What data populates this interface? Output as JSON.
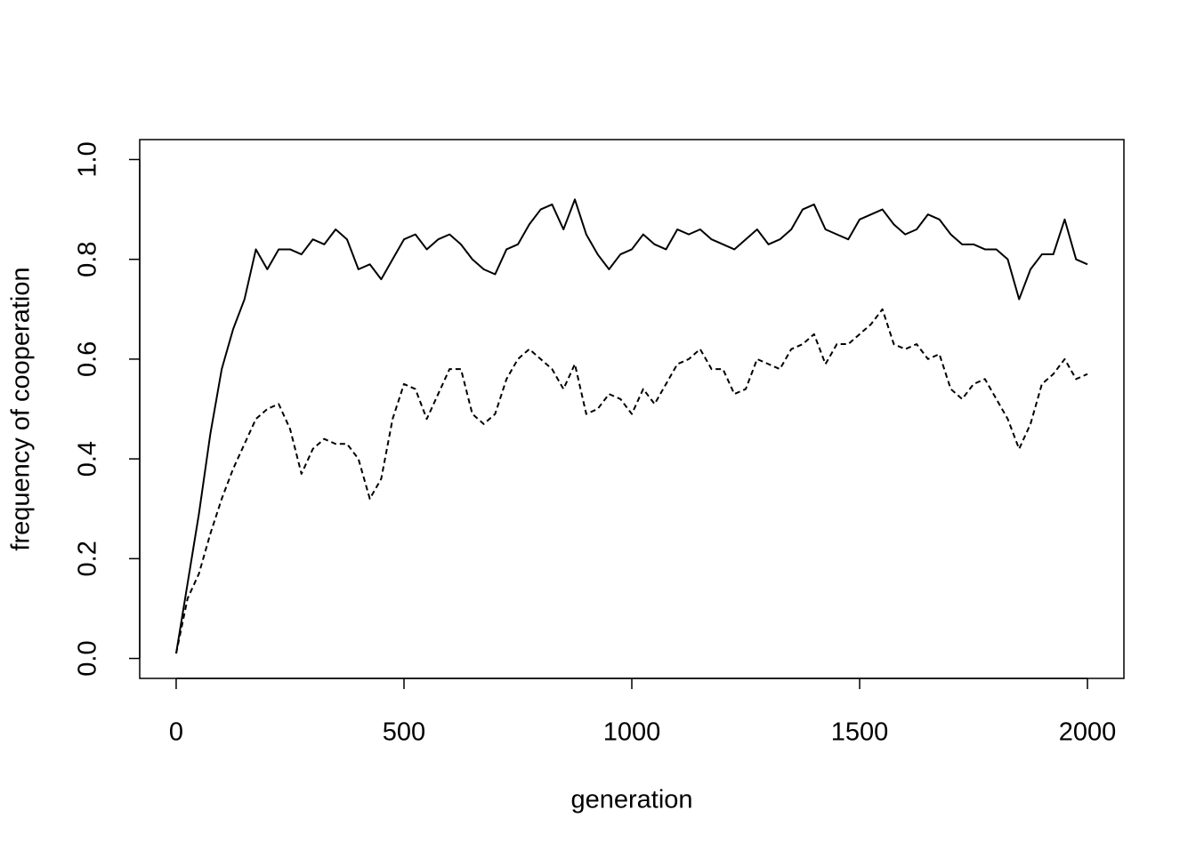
{
  "chart_data": {
    "type": "line",
    "x_label": "generation",
    "y_label": "frequency of cooperation",
    "x": [
      0,
      25,
      50,
      75,
      100,
      125,
      150,
      175,
      200,
      225,
      250,
      275,
      300,
      325,
      350,
      375,
      400,
      425,
      450,
      475,
      500,
      525,
      550,
      575,
      600,
      625,
      650,
      675,
      700,
      725,
      750,
      775,
      800,
      825,
      850,
      875,
      900,
      925,
      950,
      975,
      1000,
      1025,
      1050,
      1075,
      1100,
      1125,
      1150,
      1175,
      1200,
      1225,
      1250,
      1275,
      1300,
      1325,
      1350,
      1375,
      1400,
      1425,
      1450,
      1475,
      1500,
      1525,
      1550,
      1575,
      1600,
      1625,
      1650,
      1675,
      1700,
      1725,
      1750,
      1775,
      1800,
      1825,
      1850,
      1875,
      1900,
      1925,
      1950,
      1975,
      2000
    ],
    "series": [
      {
        "color": "#000000",
        "dash": "solid",
        "values": [
          0.01,
          0.15,
          0.29,
          0.45,
          0.58,
          0.66,
          0.72,
          0.82,
          0.78,
          0.82,
          0.82,
          0.81,
          0.84,
          0.83,
          0.86,
          0.84,
          0.78,
          0.79,
          0.76,
          0.8,
          0.84,
          0.85,
          0.82,
          0.84,
          0.85,
          0.83,
          0.8,
          0.78,
          0.77,
          0.82,
          0.83,
          0.87,
          0.9,
          0.91,
          0.86,
          0.92,
          0.85,
          0.81,
          0.78,
          0.81,
          0.82,
          0.85,
          0.83,
          0.82,
          0.86,
          0.85,
          0.86,
          0.84,
          0.83,
          0.82,
          0.84,
          0.86,
          0.83,
          0.84,
          0.86,
          0.9,
          0.91,
          0.86,
          0.85,
          0.84,
          0.88,
          0.89,
          0.9,
          0.87,
          0.85,
          0.86,
          0.89,
          0.88,
          0.85,
          0.83,
          0.83,
          0.82,
          0.82,
          0.8,
          0.72,
          0.78,
          0.81,
          0.81,
          0.88,
          0.8,
          0.79
        ]
      },
      {
        "color": "#000000",
        "dash": "dashed",
        "values": [
          0.01,
          0.12,
          0.17,
          0.25,
          0.32,
          0.38,
          0.43,
          0.48,
          0.5,
          0.51,
          0.46,
          0.37,
          0.42,
          0.44,
          0.43,
          0.43,
          0.4,
          0.32,
          0.36,
          0.48,
          0.55,
          0.54,
          0.48,
          0.53,
          0.58,
          0.58,
          0.49,
          0.47,
          0.49,
          0.56,
          0.6,
          0.62,
          0.6,
          0.58,
          0.54,
          0.59,
          0.49,
          0.5,
          0.53,
          0.52,
          0.49,
          0.54,
          0.51,
          0.55,
          0.59,
          0.6,
          0.62,
          0.58,
          0.58,
          0.53,
          0.54,
          0.6,
          0.59,
          0.58,
          0.62,
          0.63,
          0.65,
          0.59,
          0.63,
          0.63,
          0.65,
          0.67,
          0.7,
          0.63,
          0.62,
          0.63,
          0.6,
          0.61,
          0.54,
          0.52,
          0.55,
          0.56,
          0.52,
          0.48,
          0.42,
          0.47,
          0.55,
          0.57,
          0.6,
          0.56,
          0.57
        ]
      }
    ],
    "xlim": [
      -80,
      2080
    ],
    "ylim": [
      -0.04,
      1.04
    ],
    "xticks": [
      0,
      500,
      1000,
      1500,
      2000
    ],
    "yticks": [
      {
        "value": 0,
        "label": "0.0"
      },
      0.2,
      0.4,
      0.6,
      0.8,
      {
        "value": 1,
        "label": "1.0"
      }
    ]
  }
}
